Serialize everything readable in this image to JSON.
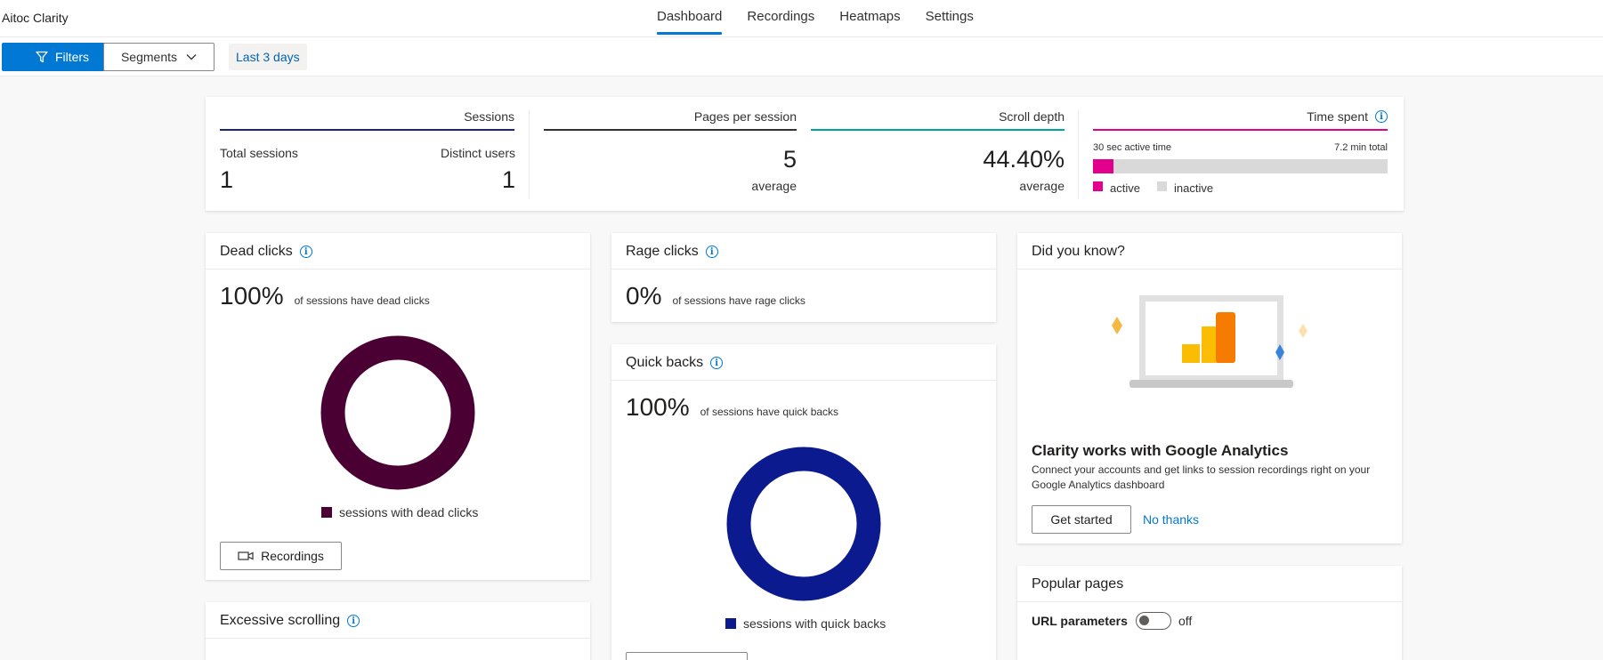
{
  "app": {
    "title": "Aitoc Clarity"
  },
  "nav": {
    "tabs": [
      {
        "label": "Dashboard",
        "active": true
      },
      {
        "label": "Recordings"
      },
      {
        "label": "Heatmaps"
      },
      {
        "label": "Settings"
      }
    ]
  },
  "toolbar": {
    "filters_label": "Filters",
    "segments_label": "Segments",
    "date_range": "Last 3 days"
  },
  "metrics": {
    "sessions": {
      "header": "Sessions",
      "total_label": "Total sessions",
      "total_value": "1",
      "distinct_label": "Distinct users",
      "distinct_value": "1",
      "color": "#1a237e"
    },
    "pages": {
      "header": "Pages per session",
      "value": "5",
      "sub": "average",
      "color": "#323130"
    },
    "scroll": {
      "header": "Scroll depth",
      "value": "44.40%",
      "sub": "average",
      "color": "#00a3a3"
    },
    "time": {
      "header": "Time spent",
      "active_text": "30 sec active time",
      "total_text": "7.2 min total",
      "active_fraction": 0.069,
      "legend_active": "active",
      "legend_inactive": "inactive",
      "active_color": "#e3008c",
      "inactive_color": "#d9d9d9"
    }
  },
  "dead_clicks": {
    "title": "Dead clicks",
    "percent": "100%",
    "desc": "of sessions have dead clicks",
    "legend": "sessions with dead clicks",
    "color": "#4a0033",
    "button": "Recordings"
  },
  "rage_clicks": {
    "title": "Rage clicks",
    "percent": "0%",
    "desc": "of sessions have rage clicks"
  },
  "quick_backs": {
    "title": "Quick backs",
    "percent": "100%",
    "desc": "of sessions have quick backs",
    "legend": "sessions with quick backs",
    "color": "#0b1b8f"
  },
  "excessive_scrolling": {
    "title": "Excessive scrolling"
  },
  "did_you_know": {
    "title": "Did you know?",
    "heading": "Clarity works with Google Analytics",
    "desc": "Connect your accounts and get links to session recordings right on your Google Analytics dashboard",
    "primary_button": "Get started",
    "secondary_link": "No thanks"
  },
  "popular_pages": {
    "title": "Popular pages",
    "toggle_label": "URL parameters",
    "toggle_state": "off"
  }
}
